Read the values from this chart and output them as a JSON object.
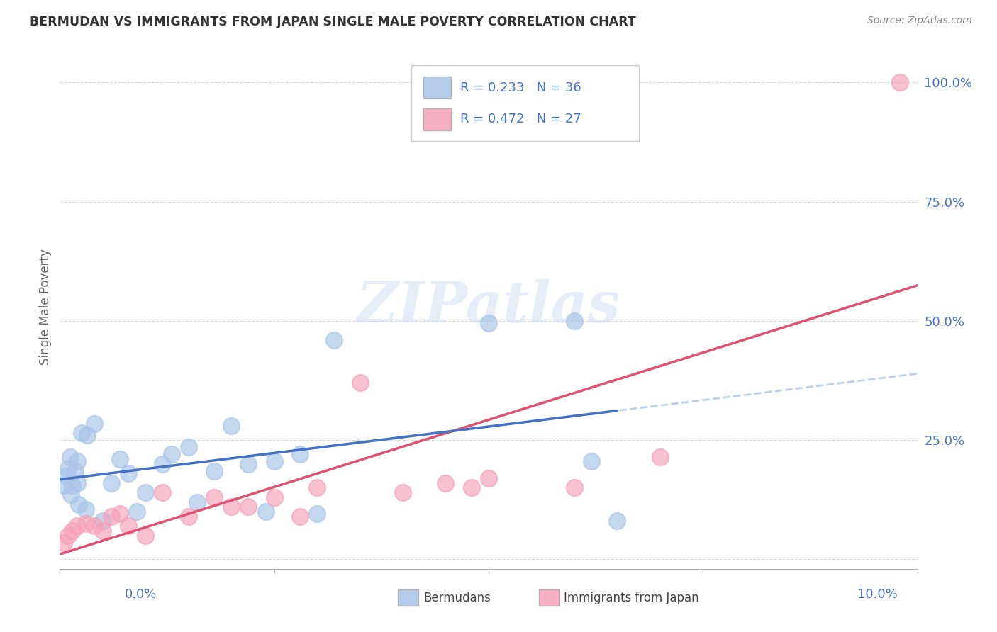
{
  "title": "BERMUDAN VS IMMIGRANTS FROM JAPAN SINGLE MALE POVERTY CORRELATION CHART",
  "source": "Source: ZipAtlas.com",
  "ylabel": "Single Male Poverty",
  "xlim": [
    0.0,
    0.1
  ],
  "ylim": [
    -0.02,
    1.08
  ],
  "y_ticks": [
    0.0,
    0.25,
    0.5,
    0.75,
    1.0
  ],
  "y_tick_labels": [
    "",
    "25.0%",
    "50.0%",
    "75.0%",
    "100.0%"
  ],
  "bermudans_R": 0.233,
  "bermudans_N": 36,
  "japan_R": 0.472,
  "japan_N": 27,
  "bermudans_color": "#a8c4e8",
  "japan_color": "#f5a0b8",
  "bermudans_line_color": "#4472c4",
  "bermudans_dash_color": "#a8c4e8",
  "japan_line_color": "#e05070",
  "bermudans_x": [
    0.0005,
    0.0008,
    0.001,
    0.0012,
    0.0013,
    0.0015,
    0.0018,
    0.002,
    0.002,
    0.0022,
    0.0025,
    0.003,
    0.0032,
    0.004,
    0.005,
    0.006,
    0.007,
    0.008,
    0.009,
    0.01,
    0.012,
    0.013,
    0.015,
    0.016,
    0.018,
    0.02,
    0.022,
    0.024,
    0.025,
    0.028,
    0.03,
    0.032,
    0.05,
    0.06,
    0.062,
    0.065
  ],
  "bermudans_y": [
    0.155,
    0.175,
    0.19,
    0.215,
    0.135,
    0.155,
    0.185,
    0.205,
    0.16,
    0.115,
    0.265,
    0.105,
    0.26,
    0.285,
    0.08,
    0.16,
    0.21,
    0.18,
    0.1,
    0.14,
    0.2,
    0.22,
    0.235,
    0.12,
    0.185,
    0.28,
    0.2,
    0.1,
    0.205,
    0.22,
    0.095,
    0.46,
    0.495,
    0.5,
    0.205,
    0.08
  ],
  "japan_x": [
    0.0005,
    0.001,
    0.0015,
    0.002,
    0.003,
    0.004,
    0.005,
    0.006,
    0.007,
    0.008,
    0.01,
    0.012,
    0.015,
    0.018,
    0.02,
    0.022,
    0.025,
    0.028,
    0.03,
    0.035,
    0.04,
    0.045,
    0.048,
    0.05,
    0.06,
    0.07,
    0.098
  ],
  "japan_y": [
    0.035,
    0.05,
    0.06,
    0.07,
    0.075,
    0.07,
    0.06,
    0.09,
    0.095,
    0.07,
    0.05,
    0.14,
    0.09,
    0.13,
    0.11,
    0.11,
    0.13,
    0.09,
    0.15,
    0.37,
    0.14,
    0.16,
    0.15,
    0.17,
    0.15,
    0.215,
    1.0
  ],
  "watermark": "ZIPatlas",
  "background_color": "#ffffff",
  "grid_color": "#cccccc",
  "tick_label_color": "#4472c4",
  "title_color": "#333333",
  "source_color": "#888888",
  "ylabel_color": "#666666"
}
